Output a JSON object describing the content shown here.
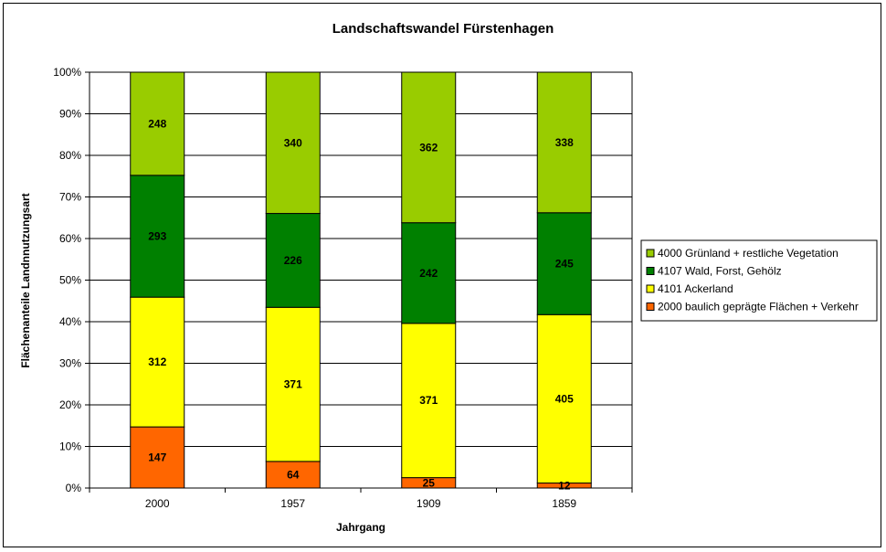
{
  "chart_data": {
    "type": "bar",
    "stacked": "percent",
    "title": "Landschaftswandel Fürstenhagen",
    "xlabel": "Jahrgang",
    "ylabel": "Flächenanteile Landnnutzungsart",
    "categories": [
      "2000",
      "1957",
      "1909",
      "1859"
    ],
    "y_ticks": [
      "0%",
      "10%",
      "20%",
      "30%",
      "40%",
      "50%",
      "60%",
      "70%",
      "80%",
      "90%",
      "100%"
    ],
    "ylim": [
      0,
      100
    ],
    "grid": true,
    "legend_position": "right",
    "series": [
      {
        "name": "2000 baulich geprägte Flächen + Verkehr",
        "color": "#ff6600",
        "values": [
          147,
          64,
          25,
          12
        ]
      },
      {
        "name": "4101 Ackerland",
        "color": "#ffff00",
        "values": [
          312,
          371,
          371,
          405
        ]
      },
      {
        "name": "4107 Wald, Forst, Gehölz",
        "color": "#008000",
        "values": [
          293,
          226,
          242,
          245
        ]
      },
      {
        "name": "4000 Grünland + restliche Vegetation",
        "color": "#99cc00",
        "values": [
          248,
          340,
          362,
          338
        ]
      }
    ]
  }
}
